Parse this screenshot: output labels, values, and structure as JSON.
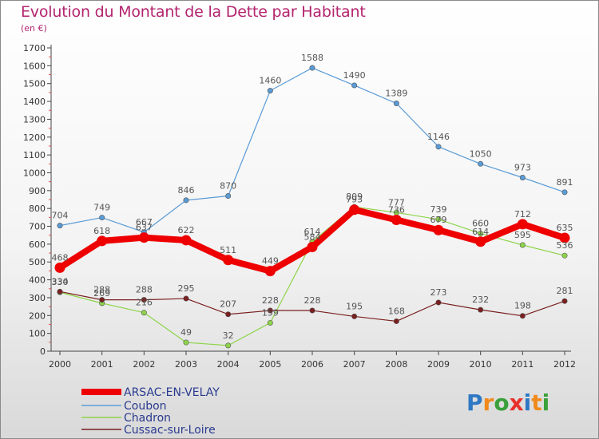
{
  "title": "Evolution du Montant de la Dette par Habitant",
  "subtitle": "(en €)",
  "logo": {
    "text": "Proxiti"
  },
  "chart_data": {
    "type": "line",
    "title": "Evolution du Montant de la Dette par Habitant",
    "subtitle": "(en €)",
    "x": [
      "2000",
      "2001",
      "2002",
      "2003",
      "2004",
      "2005",
      "2006",
      "2007",
      "2008",
      "2009",
      "2010",
      "2011",
      "2012"
    ],
    "ylim": [
      0,
      1700
    ],
    "yticks": [
      0,
      100,
      200,
      300,
      400,
      500,
      600,
      700,
      800,
      900,
      1000,
      1100,
      1200,
      1300,
      1400,
      1500,
      1600,
      1700
    ],
    "grid": false,
    "legend_position": "bottom-left",
    "series": [
      {
        "name": "ARSAC-EN-VELAY",
        "color": "#ee0000",
        "values": [
          468,
          618,
          637,
          622,
          511,
          449,
          584,
          793,
          736,
          679,
          614,
          712,
          635
        ]
      },
      {
        "name": "Coubon",
        "color": "#5a9bd5",
        "values": [
          704,
          749,
          667,
          846,
          870,
          1460,
          1588,
          1490,
          1389,
          1146,
          1050,
          973,
          891
        ]
      },
      {
        "name": "Chadron",
        "color": "#8ed44a",
        "values": [
          330,
          269,
          216,
          49,
          32,
          159,
          614,
          809,
          777,
          739,
          660,
          595,
          536
        ]
      },
      {
        "name": "Cussac-sur-Loire",
        "color": "#7a1f1f",
        "values": [
          334,
          288,
          288,
          295,
          207,
          228,
          228,
          195,
          168,
          273,
          232,
          198,
          281
        ]
      }
    ]
  }
}
